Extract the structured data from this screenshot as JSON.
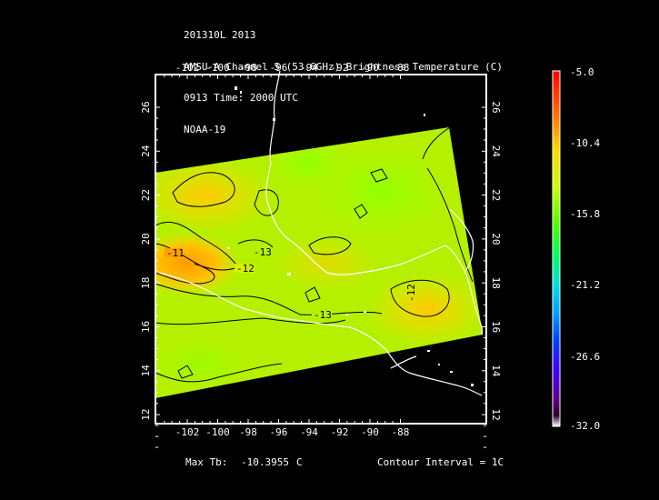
{
  "header": {
    "line1": "201310L 2013",
    "line2": "AMSU-A Channel 5 (53.6GHz) Brightness Temperature (C)",
    "line3": "0913 Time: 2000 UTC",
    "line4": "NOAA-19"
  },
  "map": {
    "lon_ticks": [
      "-102",
      "-100",
      "-98",
      "-96",
      "-94",
      "-92",
      "-90",
      "-88"
    ],
    "lat_ticks": [
      "26",
      "24",
      "22",
      "20",
      "18",
      "16",
      "14",
      "12"
    ],
    "contour_labels": [
      "-11",
      "-12",
      "-13",
      "-13",
      "-12"
    ],
    "colors": {
      "frame": "#ffffff",
      "background": "#000000",
      "coastline": "#ffffff",
      "contour": "#000000"
    }
  },
  "colorbar": {
    "labels": [
      "-5.0",
      "-10.4",
      "-15.8",
      "-21.2",
      "-26.6",
      "-32.0"
    ],
    "colors": [
      "#ff0000",
      "#ff8000",
      "#ffe000",
      "#80ff00",
      "#00ff60",
      "#00c0ff",
      "#0060ff",
      "#3000ff",
      "#6000a0",
      "#ffffff"
    ]
  },
  "footer": {
    "max_label": "Max Tb:",
    "max_value": "-10.3955",
    "max_unit": "C",
    "contour_interval": "Contour Interval = 1C"
  }
}
